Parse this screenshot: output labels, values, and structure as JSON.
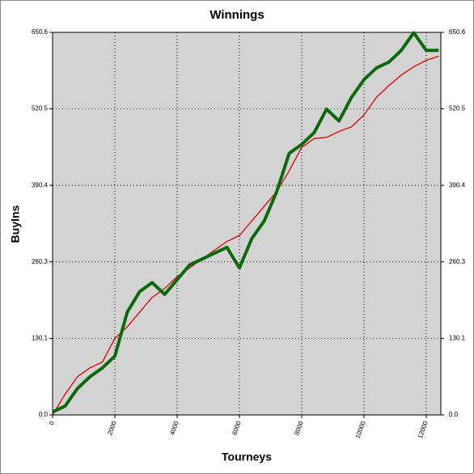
{
  "chart_data": {
    "type": "line",
    "title": "Winnings",
    "xlabel": "Tourneys",
    "ylabel": "BuyIns",
    "x": [
      0,
      400,
      800,
      1200,
      1600,
      2000,
      2400,
      2800,
      3200,
      3600,
      4000,
      4400,
      4800,
      5200,
      5600,
      6000,
      6400,
      6800,
      7200,
      7600,
      8000,
      8400,
      8800,
      9200,
      9600,
      10000,
      10400,
      10800,
      11200,
      11600,
      12000,
      12400
    ],
    "series": [
      {
        "name": "Red",
        "color": "#dd0000",
        "width": 1.3,
        "values": [
          0,
          35,
          65,
          80,
          90,
          130,
          150,
          175,
          200,
          215,
          235,
          250,
          265,
          280,
          295,
          305,
          330,
          355,
          380,
          415,
          455,
          470,
          472,
          482,
          490,
          510,
          540,
          560,
          578,
          592,
          603,
          610
        ]
      },
      {
        "name": "Green",
        "color": "#0a6a0a",
        "width": 4,
        "values": [
          5,
          15,
          45,
          65,
          80,
          100,
          175,
          210,
          225,
          205,
          230,
          255,
          265,
          275,
          285,
          250,
          300,
          330,
          380,
          445,
          460,
          480,
          520,
          500,
          540,
          570,
          590,
          600,
          620,
          650,
          620,
          620
        ]
      }
    ],
    "xlim": [
      0,
      12470
    ],
    "xticks": [
      0,
      2000,
      4000,
      6000,
      8000,
      10000,
      12000
    ],
    "ylim": [
      0,
      650.6
    ],
    "yticks": [
      {
        "value": 0,
        "label": "0.0"
      },
      130.1,
      260.3,
      390.4,
      520.5,
      650.6
    ],
    "grid": true
  }
}
